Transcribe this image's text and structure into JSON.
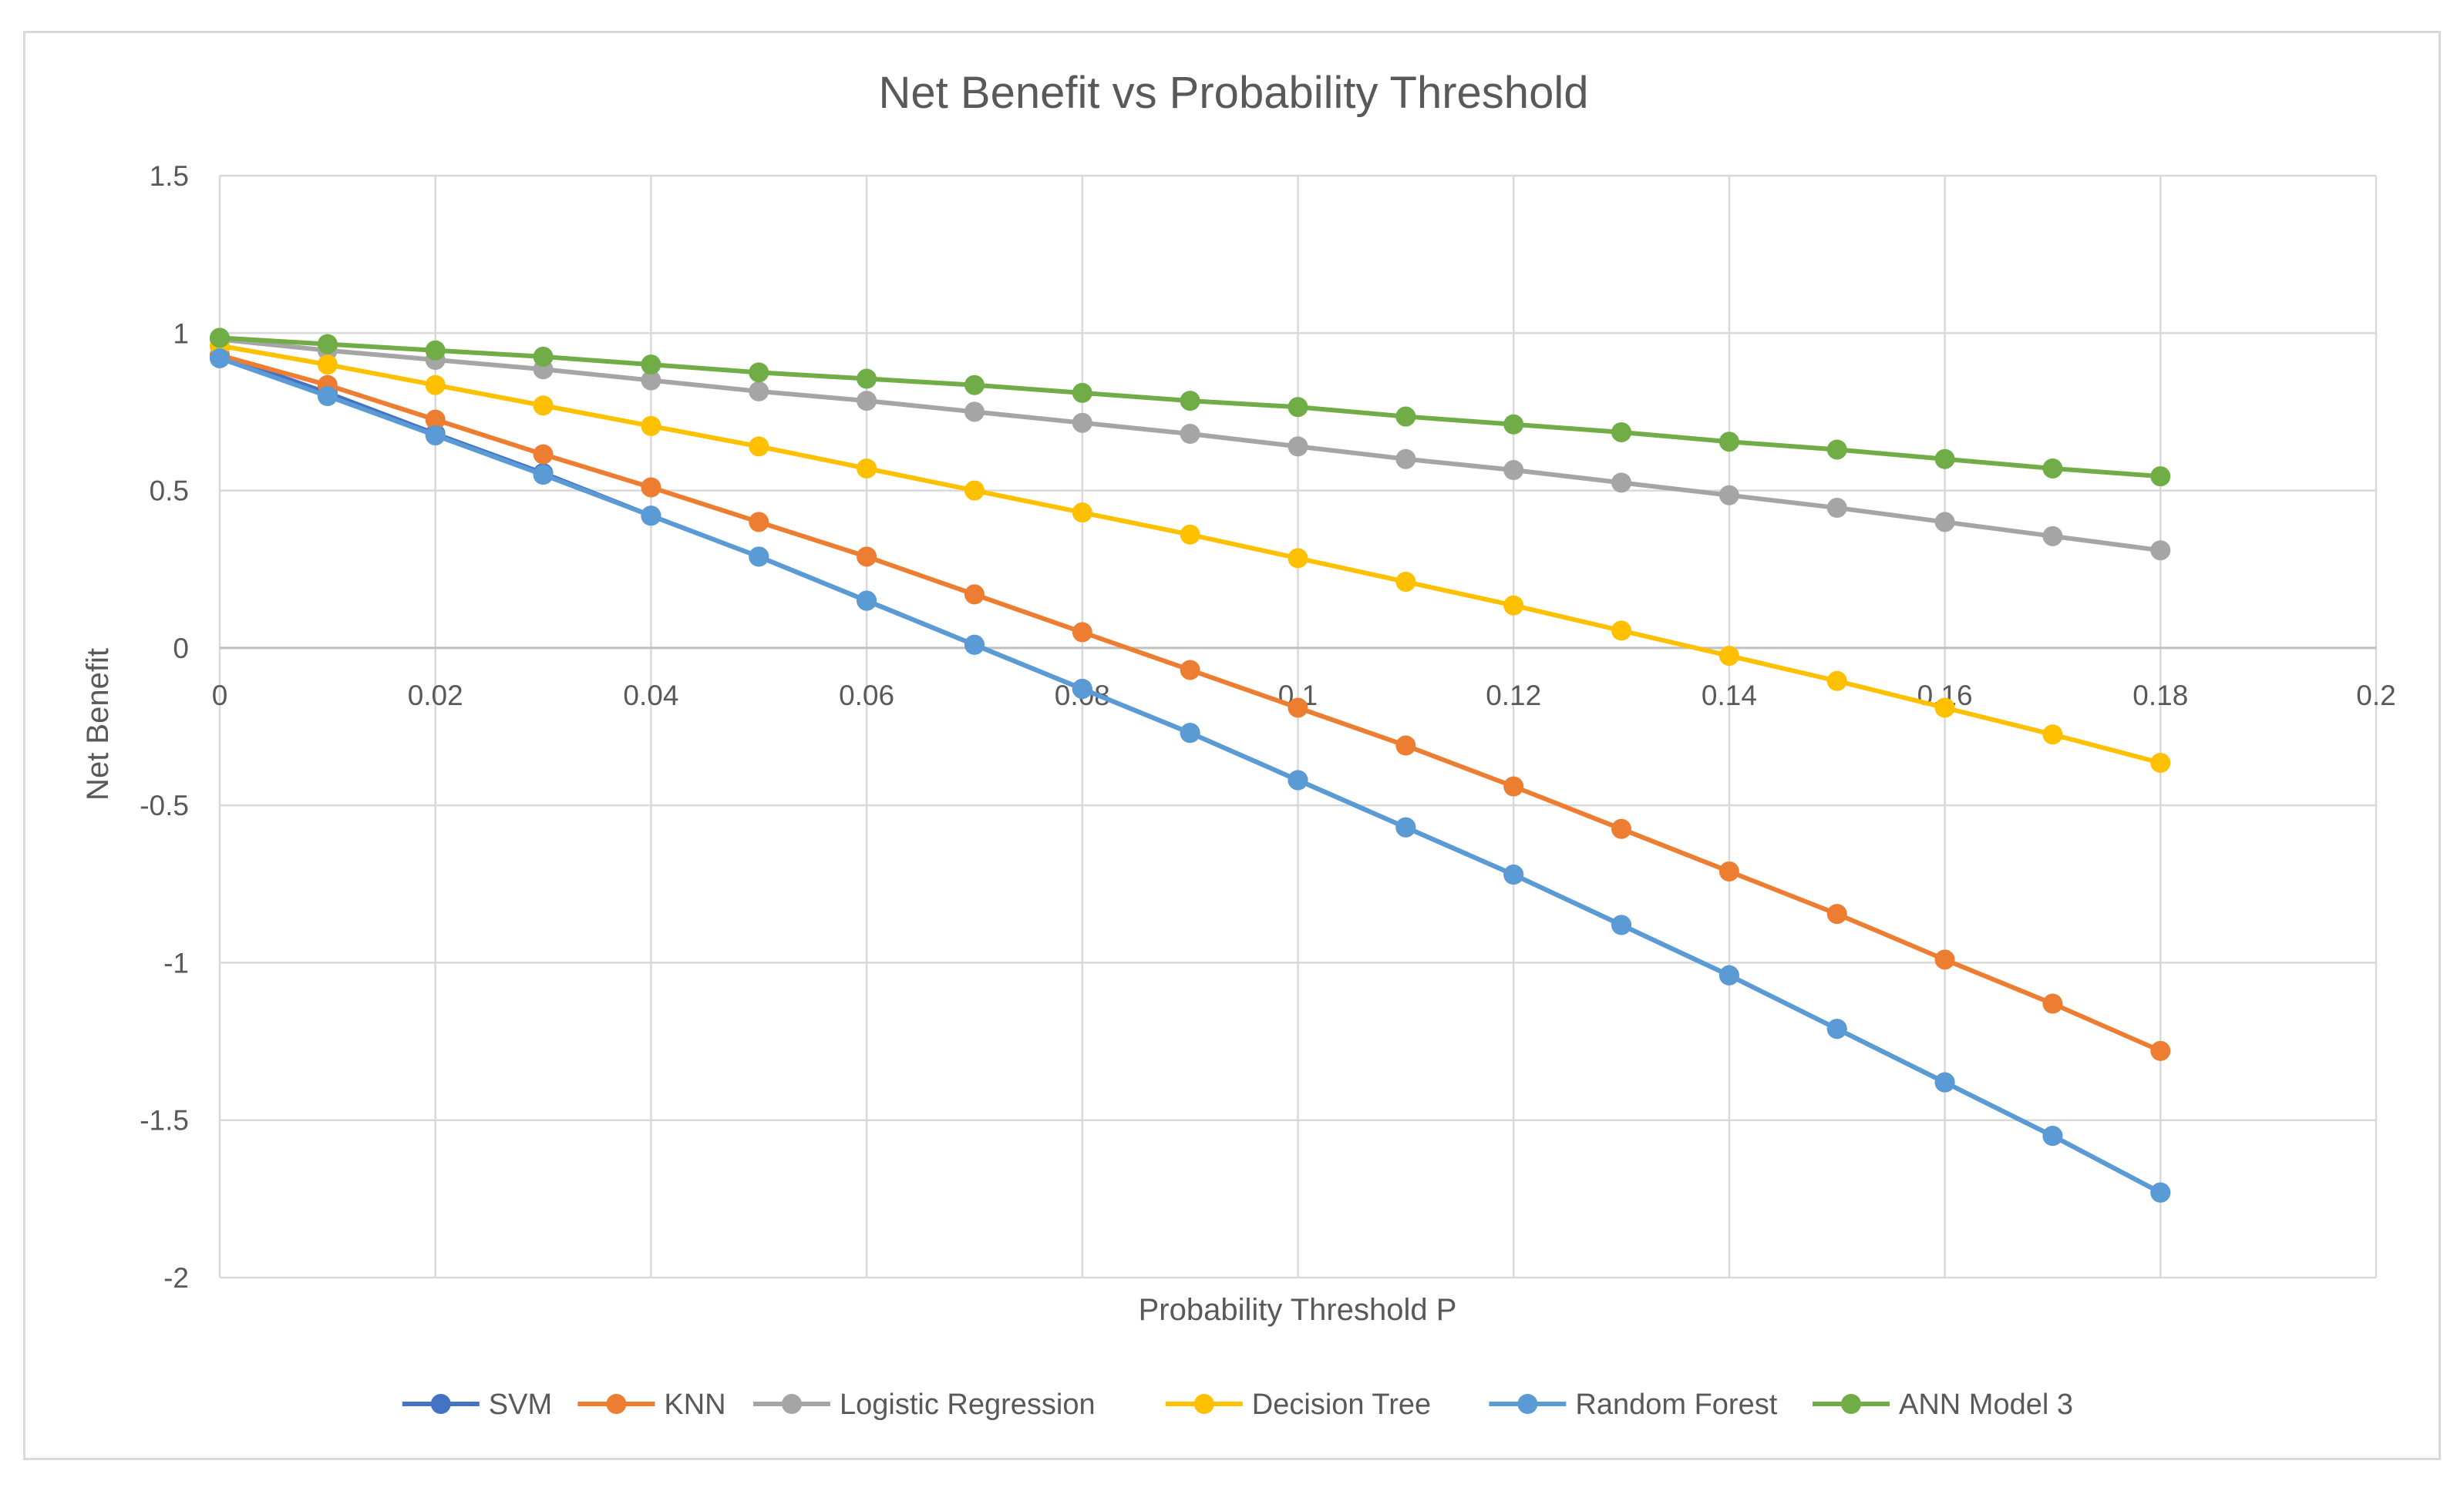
{
  "chart_data": {
    "type": "line",
    "title": "Net Benefit vs Probability Threshold",
    "xlabel": "Probability Threshold P",
    "ylabel": "Net Benefit",
    "xlim": [
      0,
      0.2
    ],
    "ylim": [
      -2,
      1.5
    ],
    "x_ticks": [
      "0",
      "0.02",
      "0.04",
      "0.06",
      "0.08",
      "0.1",
      "0.12",
      "0.14",
      "0.16",
      "0.18",
      "0.2"
    ],
    "y_ticks": [
      "1.5",
      "1",
      "0.5",
      "0",
      "-0.5",
      "-1",
      "-1.5",
      "-2"
    ],
    "x_tick_values": [
      0,
      0.02,
      0.04,
      0.06,
      0.08,
      0.1,
      0.12,
      0.14,
      0.16,
      0.18,
      0.2
    ],
    "y_tick_values": [
      1.5,
      1,
      0.5,
      0,
      -0.5,
      -1,
      -1.5,
      -2
    ],
    "grid": true,
    "legend_position": "bottom",
    "x": [
      0,
      0.01,
      0.02,
      0.03,
      0.04,
      0.05,
      0.06,
      0.07,
      0.08,
      0.09,
      0.1,
      0.11,
      0.12,
      0.13,
      0.14,
      0.15,
      0.16,
      0.17,
      0.18
    ],
    "series": [
      {
        "name": "SVM",
        "color": "#4472c4",
        "values": [
          0.93,
          0.81,
          0.68,
          0.555,
          0.42,
          0.29,
          0.15,
          0.01,
          -0.13,
          -0.27,
          -0.42,
          -0.57,
          -0.72,
          -0.88,
          -1.04,
          -1.21,
          -1.38,
          -1.55,
          -1.73
        ]
      },
      {
        "name": "KNN",
        "color": "#ed7d31",
        "values": [
          0.93,
          0.835,
          0.725,
          0.615,
          0.51,
          0.4,
          0.29,
          0.17,
          0.05,
          -0.07,
          -0.19,
          -0.31,
          -0.44,
          -0.575,
          -0.71,
          -0.845,
          -0.99,
          -1.13,
          -1.28
        ]
      },
      {
        "name": "Logistic Regression",
        "color": "#a5a5a5",
        "values": [
          0.98,
          0.945,
          0.915,
          0.885,
          0.85,
          0.815,
          0.785,
          0.75,
          0.715,
          0.68,
          0.64,
          0.6,
          0.565,
          0.525,
          0.485,
          0.445,
          0.4,
          0.355,
          0.31
        ]
      },
      {
        "name": "Decision Tree",
        "color": "#ffc000",
        "values": [
          0.96,
          0.9,
          0.835,
          0.77,
          0.705,
          0.64,
          0.57,
          0.5,
          0.43,
          0.36,
          0.285,
          0.21,
          0.135,
          0.055,
          -0.025,
          -0.105,
          -0.19,
          -0.275,
          -0.365
        ]
      },
      {
        "name": "Random Forest",
        "color": "#5b9bd5",
        "values": [
          0.92,
          0.8,
          0.675,
          0.55,
          0.42,
          0.29,
          0.15,
          0.01,
          -0.13,
          -0.27,
          -0.42,
          -0.57,
          -0.72,
          -0.88,
          -1.04,
          -1.21,
          -1.38,
          -1.55,
          -1.73
        ]
      },
      {
        "name": "ANN Model 3",
        "color": "#70ad47",
        "values": [
          0.985,
          0.965,
          0.945,
          0.925,
          0.9,
          0.875,
          0.855,
          0.835,
          0.81,
          0.785,
          0.765,
          0.735,
          0.71,
          0.685,
          0.655,
          0.63,
          0.6,
          0.57,
          0.545
        ]
      }
    ]
  },
  "colors": {
    "gridline": "#d9d9d9",
    "axis_text": "#595959",
    "frame": "#d9d9d9"
  }
}
